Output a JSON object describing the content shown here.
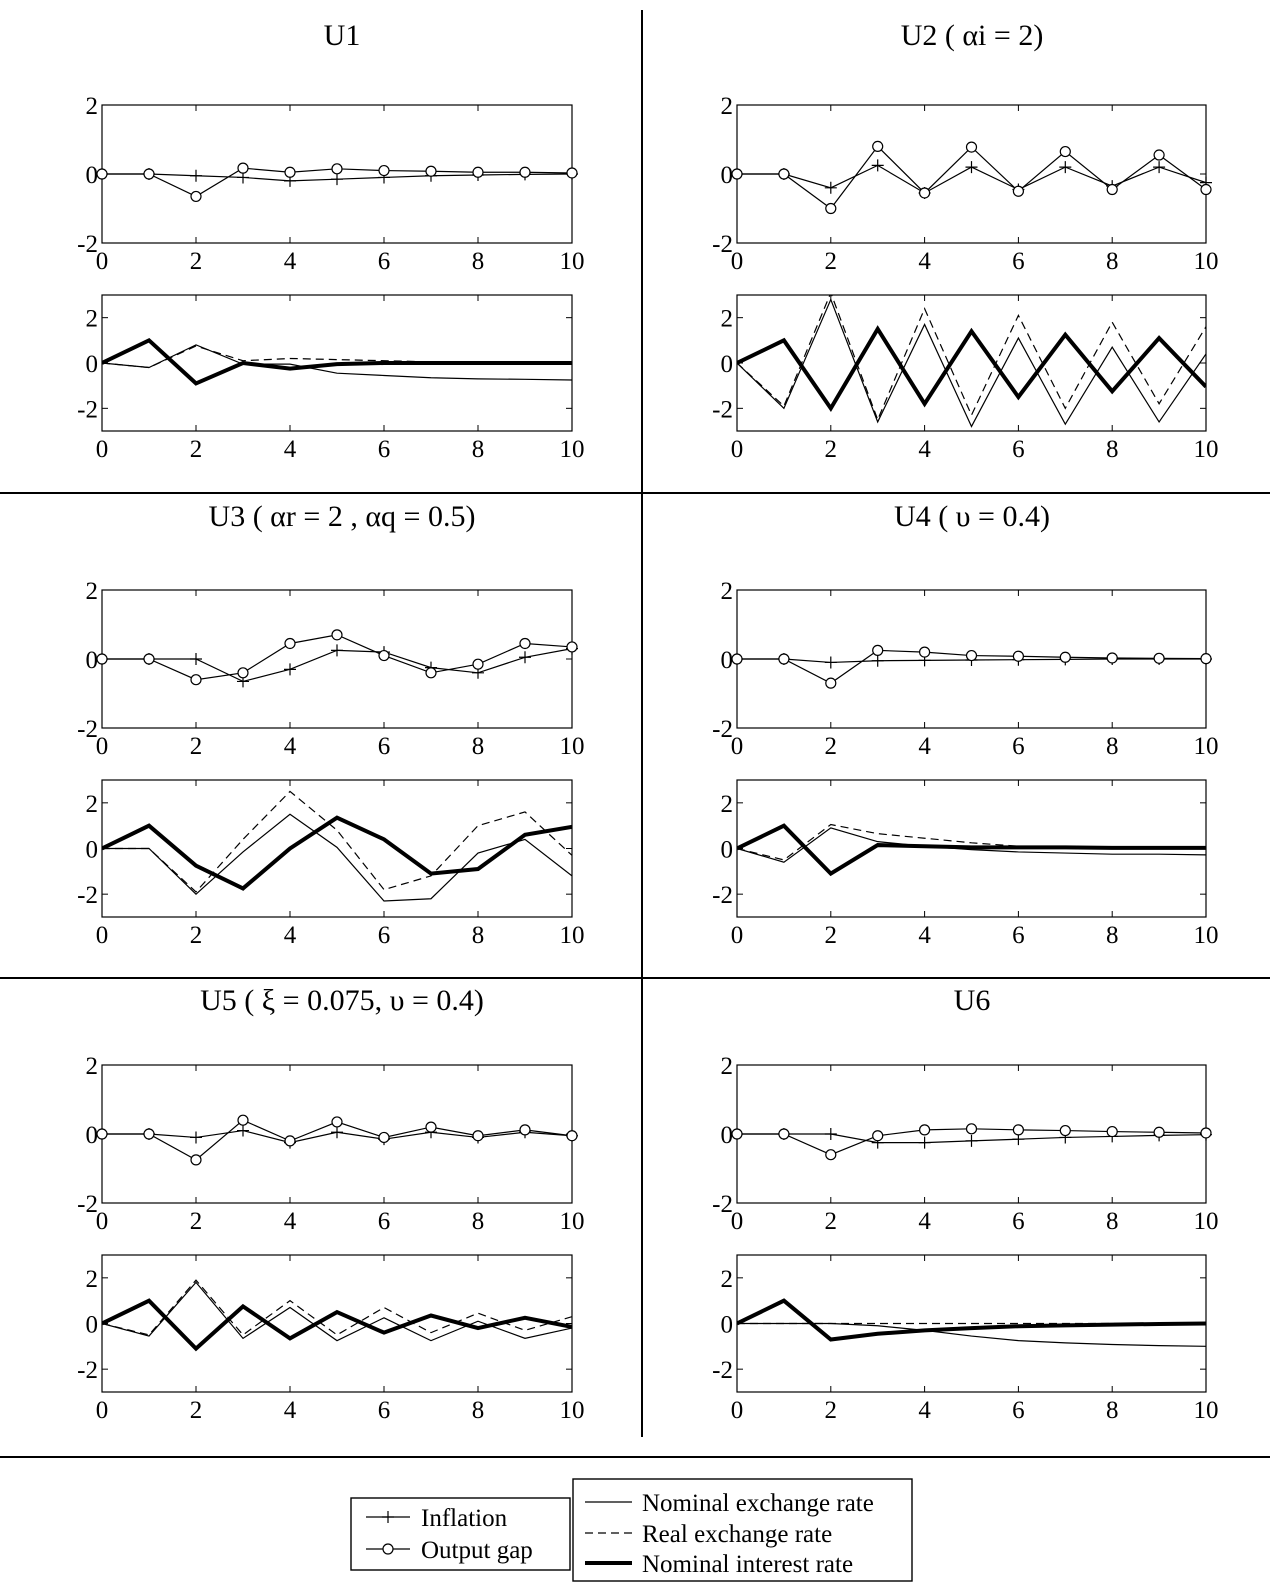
{
  "legend": {
    "inflation": "Inflation",
    "output_gap": "Output gap",
    "nominal_exchange_rate": "Nominal exchange rate",
    "real_exchange_rate": "Real exchange rate",
    "nominal_interest_rate": "Nominal interest rate"
  },
  "chart_data": [
    {
      "id": "U1",
      "title_main": "U1",
      "title_params": "",
      "top": {
        "type": "line",
        "x": [
          0,
          1,
          2,
          3,
          4,
          5,
          6,
          7,
          8,
          9,
          10
        ],
        "ylim": [
          -2,
          2
        ],
        "yticks": [
          -2,
          0,
          2
        ],
        "series": [
          {
            "name": "Inflation",
            "values": [
              0,
              0,
              -0.05,
              -0.1,
              -0.2,
              -0.15,
              -0.1,
              -0.05,
              -0.03,
              -0.01,
              0
            ]
          },
          {
            "name": "Output gap",
            "values": [
              0,
              0,
              -0.65,
              0.17,
              0.05,
              0.15,
              0.1,
              0.08,
              0.05,
              0.05,
              0.03
            ]
          }
        ]
      },
      "bottom": {
        "type": "line",
        "x": [
          0,
          1,
          2,
          3,
          4,
          5,
          6,
          7,
          8,
          9,
          10
        ],
        "ylim": [
          -3,
          3
        ],
        "yticks": [
          -2,
          0,
          2
        ],
        "series": [
          {
            "name": "Nominal exchange rate",
            "values": [
              0,
              -0.2,
              0.8,
              -0.05,
              -0.05,
              -0.45,
              -0.55,
              -0.65,
              -0.7,
              -0.72,
              -0.75
            ]
          },
          {
            "name": "Real exchange rate",
            "values": [
              0,
              -0.2,
              0.75,
              0.1,
              0.2,
              0.15,
              0.1,
              0.05,
              0.03,
              0.02,
              0.01
            ]
          },
          {
            "name": "Nominal interest rate",
            "values": [
              0,
              1,
              -0.9,
              0,
              -0.25,
              -0.05,
              0,
              0,
              0,
              0,
              0
            ]
          }
        ]
      }
    },
    {
      "id": "U2",
      "title_main": "U2 (",
      "title_params": "αi = 2)",
      "top": {
        "type": "line",
        "x": [
          0,
          1,
          2,
          3,
          4,
          5,
          6,
          7,
          8,
          9,
          10
        ],
        "ylim": [
          -2,
          2
        ],
        "yticks": [
          -2,
          0,
          2
        ],
        "series": [
          {
            "name": "Inflation",
            "values": [
              0,
              0,
              -0.4,
              0.25,
              -0.55,
              0.2,
              -0.45,
              0.2,
              -0.35,
              0.2,
              -0.25
            ]
          },
          {
            "name": "Output gap",
            "values": [
              0,
              0,
              -1.0,
              0.8,
              -0.55,
              0.78,
              -0.5,
              0.65,
              -0.45,
              0.55,
              -0.45
            ]
          }
        ]
      },
      "bottom": {
        "type": "line",
        "x": [
          0,
          1,
          2,
          3,
          4,
          5,
          6,
          7,
          8,
          9,
          10
        ],
        "ylim": [
          -3,
          3
        ],
        "yticks": [
          -2,
          0,
          2
        ],
        "series": [
          {
            "name": "Nominal exchange rate",
            "values": [
              0,
              -2,
              2.8,
              -2.6,
              1.7,
              -2.8,
              1.1,
              -2.7,
              0.7,
              -2.6,
              0.4
            ]
          },
          {
            "name": "Real exchange rate",
            "values": [
              0,
              -1.9,
              3.1,
              -2.5,
              2.4,
              -2.3,
              2.1,
              -2.0,
              1.8,
              -1.8,
              1.6
            ]
          },
          {
            "name": "Nominal interest rate",
            "values": [
              0,
              1,
              -2,
              1.5,
              -1.8,
              1.4,
              -1.5,
              1.25,
              -1.25,
              1.1,
              -1.05
            ]
          }
        ]
      }
    },
    {
      "id": "U3",
      "title_main": "U3 (",
      "title_params": "αr = 2 , αq = 0.5)",
      "top": {
        "type": "line",
        "x": [
          0,
          1,
          2,
          3,
          4,
          5,
          6,
          7,
          8,
          9,
          10
        ],
        "ylim": [
          -2,
          2
        ],
        "yticks": [
          -2,
          0,
          2
        ],
        "series": [
          {
            "name": "Inflation",
            "values": [
              0,
              0,
              0,
              -0.65,
              -0.3,
              0.25,
              0.2,
              -0.25,
              -0.4,
              0.05,
              0.3
            ]
          },
          {
            "name": "Output gap",
            "values": [
              0,
              0,
              -0.6,
              -0.4,
              0.45,
              0.7,
              0.1,
              -0.4,
              -0.15,
              0.45,
              0.35
            ]
          }
        ]
      },
      "bottom": {
        "type": "line",
        "x": [
          0,
          1,
          2,
          3,
          4,
          5,
          6,
          7,
          8,
          9,
          10
        ],
        "ylim": [
          -3,
          3
        ],
        "yticks": [
          -2,
          0,
          2
        ],
        "series": [
          {
            "name": "Nominal exchange rate",
            "values": [
              0,
              0,
              -2,
              -0.15,
              1.5,
              0.05,
              -2.3,
              -2.2,
              -0.2,
              0.4,
              -1.2
            ]
          },
          {
            "name": "Real exchange rate",
            "values": [
              0,
              0,
              -1.9,
              0.4,
              2.5,
              0.8,
              -1.8,
              -1.2,
              1.0,
              1.6,
              -0.3
            ]
          },
          {
            "name": "Nominal interest rate",
            "values": [
              0,
              1,
              -0.75,
              -1.75,
              0,
              1.35,
              0.4,
              -1.1,
              -0.9,
              0.6,
              0.95
            ]
          }
        ]
      }
    },
    {
      "id": "U4",
      "title_main": "U4 (",
      "title_params": "υ = 0.4)",
      "top": {
        "type": "line",
        "x": [
          0,
          1,
          2,
          3,
          4,
          5,
          6,
          7,
          8,
          9,
          10
        ],
        "ylim": [
          -2,
          2
        ],
        "yticks": [
          -2,
          0,
          2
        ],
        "series": [
          {
            "name": "Inflation",
            "values": [
              0,
              0,
              -0.1,
              -0.05,
              -0.04,
              -0.03,
              -0.02,
              -0.01,
              0,
              0,
              0
            ]
          },
          {
            "name": "Output gap",
            "values": [
              0,
              0,
              -0.7,
              0.25,
              0.2,
              0.1,
              0.08,
              0.05,
              0.03,
              0.02,
              0.01
            ]
          }
        ]
      },
      "bottom": {
        "type": "line",
        "x": [
          0,
          1,
          2,
          3,
          4,
          5,
          6,
          7,
          8,
          9,
          10
        ],
        "ylim": [
          -3,
          3
        ],
        "yticks": [
          -2,
          0,
          2
        ],
        "series": [
          {
            "name": "Nominal exchange rate",
            "values": [
              0,
              -0.6,
              0.9,
              0.3,
              0.1,
              -0.05,
              -0.15,
              -0.2,
              -0.25,
              -0.25,
              -0.28
            ]
          },
          {
            "name": "Real exchange rate",
            "values": [
              0,
              -0.5,
              1.05,
              0.65,
              0.45,
              0.25,
              0.1,
              0.05,
              0.02,
              0.02,
              0.01
            ]
          },
          {
            "name": "Nominal interest rate",
            "values": [
              0,
              1,
              -1.1,
              0.15,
              0.1,
              0.05,
              0.05,
              0.05,
              0.03,
              0.03,
              0.03
            ]
          }
        ]
      }
    },
    {
      "id": "U5",
      "title_main": "U5 (",
      "title_params": "ξ = 0.075, υ = 0.4)",
      "top": {
        "type": "line",
        "x": [
          0,
          1,
          2,
          3,
          4,
          5,
          6,
          7,
          8,
          9,
          10
        ],
        "ylim": [
          -2,
          2
        ],
        "yticks": [
          -2,
          0,
          2
        ],
        "series": [
          {
            "name": "Inflation",
            "values": [
              0,
              0,
              -0.1,
              0.1,
              -0.25,
              0.05,
              -0.15,
              0.05,
              -0.1,
              0.05,
              -0.05
            ]
          },
          {
            "name": "Output gap",
            "values": [
              0,
              0,
              -0.75,
              0.4,
              -0.2,
              0.35,
              -0.1,
              0.2,
              -0.05,
              0.12,
              -0.05
            ]
          }
        ]
      },
      "bottom": {
        "type": "line",
        "x": [
          0,
          1,
          2,
          3,
          4,
          5,
          6,
          7,
          8,
          9,
          10
        ],
        "ylim": [
          -3,
          3
        ],
        "yticks": [
          -2,
          0,
          2
        ],
        "series": [
          {
            "name": "Nominal exchange rate",
            "values": [
              0,
              -0.55,
              1.8,
              -0.65,
              0.7,
              -0.75,
              0.25,
              -0.75,
              0.1,
              -0.65,
              -0.2
            ]
          },
          {
            "name": "Real exchange rate",
            "values": [
              0,
              -0.5,
              1.9,
              -0.5,
              1.0,
              -0.5,
              0.7,
              -0.4,
              0.45,
              -0.3,
              0.3
            ]
          },
          {
            "name": "Nominal interest rate",
            "values": [
              0,
              1,
              -1.1,
              0.75,
              -0.65,
              0.5,
              -0.4,
              0.35,
              -0.2,
              0.25,
              -0.15
            ]
          }
        ]
      }
    },
    {
      "id": "U6",
      "title_main": "U6",
      "title_params": "",
      "top": {
        "type": "line",
        "x": [
          0,
          1,
          2,
          3,
          4,
          5,
          6,
          7,
          8,
          9,
          10
        ],
        "ylim": [
          -2,
          2
        ],
        "yticks": [
          -2,
          0,
          2
        ],
        "series": [
          {
            "name": "Inflation",
            "values": [
              0,
              0,
              0,
              -0.25,
              -0.25,
              -0.2,
              -0.15,
              -0.1,
              -0.07,
              -0.04,
              -0.02
            ]
          },
          {
            "name": "Output gap",
            "values": [
              0,
              0,
              -0.6,
              -0.05,
              0.12,
              0.15,
              0.12,
              0.1,
              0.07,
              0.05,
              0.03
            ]
          }
        ]
      },
      "bottom": {
        "type": "line",
        "x": [
          0,
          1,
          2,
          3,
          4,
          5,
          6,
          7,
          8,
          9,
          10
        ],
        "ylim": [
          -3,
          3
        ],
        "yticks": [
          -2,
          0,
          2
        ],
        "series": [
          {
            "name": "Nominal exchange rate",
            "values": [
              0,
              0,
              0,
              -0.1,
              -0.3,
              -0.55,
              -0.75,
              -0.85,
              -0.92,
              -0.97,
              -1.0
            ]
          },
          {
            "name": "Real exchange rate",
            "values": [
              0,
              0,
              0,
              0,
              0,
              0,
              0,
              0,
              0,
              0,
              0
            ]
          },
          {
            "name": "Nominal interest rate",
            "values": [
              0,
              1,
              -0.7,
              -0.45,
              -0.3,
              -0.2,
              -0.12,
              -0.08,
              -0.05,
              -0.02,
              0
            ]
          }
        ]
      }
    }
  ]
}
